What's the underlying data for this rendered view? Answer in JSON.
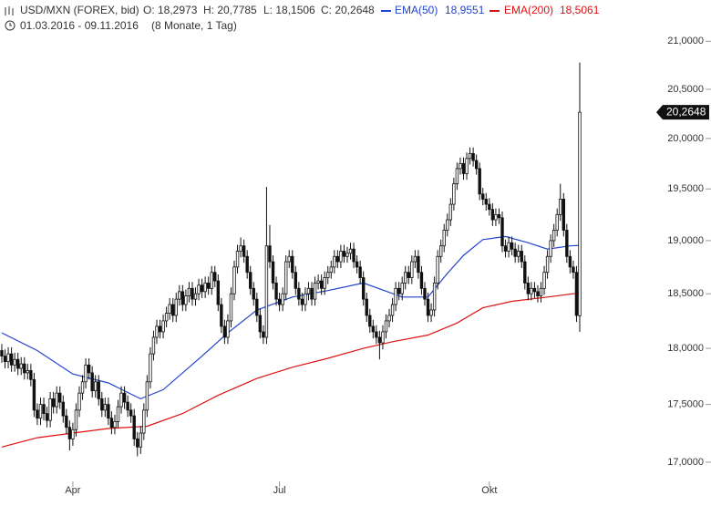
{
  "chart_data": {
    "type": "candlestick",
    "header": {
      "title": "USD/MXN (FOREX, bid)",
      "ohlc": [
        "O: 18,2973",
        "H: 20,7785",
        "L: 18,1506",
        "C: 20,2648"
      ],
      "range": "01.03.2016 - 09.11.2016",
      "span": "(8 Monate, 1 Tag)"
    },
    "log_scale": true,
    "ylim": [
      16.86,
      21.44
    ],
    "yticks": [
      {
        "value": 17,
        "label": "17,0000"
      },
      {
        "value": 17.5,
        "label": "17,5000"
      },
      {
        "value": 18,
        "label": "18,0000"
      },
      {
        "value": 18.5,
        "label": "18,5000"
      },
      {
        "value": 19,
        "label": "19,0000"
      },
      {
        "value": 19.5,
        "label": "19,5000"
      },
      {
        "value": 20,
        "label": "20,0000"
      },
      {
        "value": 20.5,
        "label": "20,5000"
      },
      {
        "value": 21,
        "label": "21,0000"
      }
    ],
    "xlim": [
      -0.56,
      182.95
    ],
    "xticks": [
      {
        "value": 22,
        "label": "Apr"
      },
      {
        "value": 86,
        "label": "Jul"
      },
      {
        "value": 151,
        "label": "Okt"
      }
    ],
    "last_price_label": "20,2648",
    "candles": {
      "open": [
        17.98,
        17.93,
        17.88,
        17.95,
        17.85,
        17.9,
        17.82,
        17.86,
        17.78,
        17.8,
        17.72,
        17.45,
        17.38,
        17.5,
        17.42,
        17.36,
        17.55,
        17.48,
        17.6,
        17.52,
        17.4,
        17.3,
        17.2,
        17.28,
        17.45,
        17.6,
        17.7,
        17.85,
        17.78,
        17.62,
        17.7,
        17.55,
        17.45,
        17.5,
        17.38,
        17.3,
        17.35,
        17.48,
        17.6,
        17.52,
        17.45,
        17.4,
        17.2,
        17.13,
        17.25,
        17.45,
        17.7,
        17.95,
        18.1,
        18.2,
        18.15,
        18.25,
        18.32,
        18.4,
        18.3,
        18.45,
        18.52,
        18.4,
        18.48,
        18.55,
        18.45,
        18.5,
        18.58,
        18.52,
        18.6,
        18.55,
        18.7,
        18.62,
        18.4,
        18.2,
        18.1,
        18.25,
        18.5,
        18.75,
        18.9,
        18.95,
        18.85,
        18.7,
        18.55,
        18.45,
        18.3,
        18.15,
        18.1,
        18.95,
        18.8,
        18.6,
        18.45,
        18.4,
        18.5,
        18.8,
        18.85,
        18.7,
        18.55,
        18.45,
        18.4,
        18.5,
        18.55,
        18.45,
        18.6,
        18.62,
        18.55,
        18.65,
        18.7,
        18.75,
        18.85,
        18.8,
        18.9,
        18.85,
        18.88,
        18.92,
        18.8,
        18.75,
        18.65,
        18.45,
        18.3,
        18.2,
        18.15,
        18.1,
        18.05,
        18.15,
        18.25,
        18.3,
        18.4,
        18.55,
        18.5,
        18.6,
        18.7,
        18.65,
        18.8,
        18.85,
        18.7,
        18.55,
        18.45,
        18.3,
        18.35,
        18.6,
        18.85,
        18.95,
        19.1,
        19.2,
        19.35,
        19.55,
        19.7,
        19.75,
        19.65,
        19.8,
        19.85,
        19.78,
        19.7,
        19.45,
        19.4,
        19.35,
        19.3,
        19.2,
        19.25,
        19.22,
        18.95,
        18.9,
        18.98,
        18.92,
        18.85,
        18.9,
        18.8,
        18.6,
        18.5,
        18.55,
        18.52,
        18.48,
        18.55,
        18.7,
        18.85,
        19.0,
        19.1,
        19.25,
        19.4,
        19.1,
        18.85,
        18.75,
        18.7,
        18.2973
      ],
      "high": [
        18.04,
        17.99,
        18.01,
        18.01,
        17.96,
        17.96,
        17.92,
        17.92,
        17.86,
        17.86,
        17.78,
        17.51,
        17.56,
        17.56,
        17.48,
        17.61,
        17.61,
        17.66,
        17.66,
        17.58,
        17.46,
        17.36,
        17.34,
        17.51,
        17.66,
        17.76,
        17.91,
        17.91,
        17.84,
        17.76,
        17.76,
        17.61,
        17.56,
        17.56,
        17.44,
        17.41,
        17.54,
        17.66,
        17.66,
        17.58,
        17.51,
        17.46,
        17.26,
        17.31,
        17.51,
        17.76,
        18.01,
        18.16,
        18.26,
        18.26,
        18.31,
        18.38,
        18.46,
        18.46,
        18.51,
        18.58,
        18.58,
        18.54,
        18.61,
        18.61,
        18.56,
        18.64,
        18.64,
        18.66,
        18.66,
        18.76,
        18.76,
        18.68,
        18.46,
        18.26,
        18.31,
        18.56,
        18.81,
        18.96,
        19.03,
        19.01,
        18.91,
        18.76,
        18.61,
        18.51,
        18.36,
        18.21,
        19.52,
        19.15,
        18.86,
        18.66,
        18.51,
        18.56,
        18.86,
        18.91,
        18.91,
        18.76,
        18.61,
        18.51,
        18.56,
        18.61,
        18.61,
        18.66,
        18.68,
        18.68,
        18.71,
        18.76,
        18.81,
        18.91,
        18.91,
        18.96,
        18.96,
        18.94,
        18.98,
        18.98,
        18.86,
        18.81,
        18.71,
        18.51,
        18.36,
        18.26,
        18.21,
        18.16,
        18.21,
        18.31,
        18.36,
        18.46,
        18.61,
        18.61,
        18.66,
        18.76,
        18.76,
        18.86,
        18.91,
        18.91,
        18.76,
        18.61,
        18.51,
        18.41,
        18.66,
        18.91,
        19.01,
        19.16,
        19.26,
        19.41,
        19.61,
        19.76,
        19.81,
        19.81,
        19.86,
        19.91,
        19.91,
        19.84,
        19.76,
        19.51,
        19.46,
        19.41,
        19.36,
        19.31,
        19.31,
        19.28,
        19.01,
        19.04,
        19.04,
        18.98,
        18.96,
        18.96,
        18.86,
        18.66,
        18.61,
        18.61,
        18.58,
        18.61,
        18.76,
        18.91,
        19.06,
        19.16,
        19.31,
        19.55,
        19.46,
        19.16,
        18.91,
        18.81,
        18.76,
        20.7785
      ],
      "low": [
        17.87,
        17.82,
        17.82,
        17.79,
        17.79,
        17.76,
        17.76,
        17.72,
        17.72,
        17.66,
        17.39,
        17.32,
        17.32,
        17.36,
        17.3,
        17.3,
        17.42,
        17.42,
        17.46,
        17.34,
        17.24,
        17.1,
        17.14,
        17.22,
        17.39,
        17.54,
        17.64,
        17.72,
        17.56,
        17.56,
        17.49,
        17.39,
        17.39,
        17.32,
        17.24,
        17.24,
        17.29,
        17.42,
        17.46,
        17.39,
        17.34,
        17.14,
        17.05,
        17.07,
        17.19,
        17.39,
        17.64,
        17.89,
        18.04,
        18.09,
        18.09,
        18.19,
        18.26,
        18.24,
        18.24,
        18.39,
        18.34,
        18.34,
        18.42,
        18.39,
        18.39,
        18.44,
        18.46,
        18.46,
        18.49,
        18.49,
        18.56,
        18.34,
        18.14,
        18.04,
        18.04,
        18.19,
        18.44,
        18.69,
        18.84,
        18.79,
        18.64,
        18.49,
        18.39,
        18.24,
        18.09,
        18.04,
        18.04,
        18.74,
        18.54,
        18.39,
        18.34,
        18.34,
        18.44,
        18.74,
        18.64,
        18.49,
        18.39,
        18.34,
        18.34,
        18.44,
        18.39,
        18.39,
        18.54,
        18.49,
        18.49,
        18.59,
        18.64,
        18.69,
        18.74,
        18.74,
        18.79,
        18.79,
        18.82,
        18.74,
        18.69,
        18.59,
        18.39,
        18.24,
        18.14,
        18.09,
        18.04,
        17.9,
        17.99,
        18.09,
        18.19,
        18.24,
        18.34,
        18.44,
        18.44,
        18.54,
        18.59,
        18.59,
        18.74,
        18.64,
        18.49,
        18.39,
        18.24,
        18.24,
        18.29,
        18.54,
        18.79,
        18.89,
        19.04,
        19.14,
        19.29,
        19.49,
        19.64,
        19.59,
        19.59,
        19.74,
        19.72,
        19.64,
        19.39,
        19.34,
        19.29,
        19.24,
        19.14,
        19.14,
        19.16,
        18.89,
        18.84,
        18.84,
        18.86,
        18.79,
        18.79,
        18.74,
        18.54,
        18.44,
        18.44,
        18.46,
        18.42,
        18.42,
        18.49,
        18.64,
        18.79,
        18.94,
        19.04,
        19.19,
        19.04,
        18.79,
        18.69,
        18.64,
        18.24,
        18.1506
      ],
      "close": [
        17.93,
        17.88,
        17.95,
        17.85,
        17.9,
        17.82,
        17.86,
        17.78,
        17.8,
        17.72,
        17.45,
        17.38,
        17.5,
        17.42,
        17.36,
        17.55,
        17.48,
        17.6,
        17.52,
        17.4,
        17.3,
        17.2,
        17.28,
        17.45,
        17.6,
        17.7,
        17.85,
        17.78,
        17.62,
        17.7,
        17.55,
        17.45,
        17.5,
        17.38,
        17.3,
        17.35,
        17.48,
        17.6,
        17.52,
        17.45,
        17.4,
        17.2,
        17.13,
        17.25,
        17.45,
        17.7,
        17.95,
        18.1,
        18.2,
        18.15,
        18.25,
        18.32,
        18.4,
        18.3,
        18.45,
        18.52,
        18.4,
        18.48,
        18.55,
        18.45,
        18.5,
        18.58,
        18.52,
        18.6,
        18.55,
        18.7,
        18.62,
        18.4,
        18.2,
        18.1,
        18.25,
        18.5,
        18.75,
        18.9,
        18.95,
        18.85,
        18.7,
        18.55,
        18.45,
        18.3,
        18.15,
        18.1,
        18.95,
        18.8,
        18.6,
        18.45,
        18.4,
        18.5,
        18.8,
        18.85,
        18.7,
        18.55,
        18.45,
        18.4,
        18.5,
        18.55,
        18.45,
        18.6,
        18.62,
        18.55,
        18.65,
        18.7,
        18.75,
        18.85,
        18.8,
        18.9,
        18.85,
        18.88,
        18.92,
        18.8,
        18.75,
        18.65,
        18.45,
        18.3,
        18.2,
        18.15,
        18.1,
        18.05,
        18.15,
        18.25,
        18.3,
        18.4,
        18.55,
        18.5,
        18.6,
        18.7,
        18.65,
        18.8,
        18.85,
        18.7,
        18.55,
        18.45,
        18.3,
        18.35,
        18.6,
        18.85,
        18.95,
        19.1,
        19.2,
        19.35,
        19.55,
        19.7,
        19.75,
        19.65,
        19.8,
        19.85,
        19.78,
        19.7,
        19.45,
        19.4,
        19.35,
        19.3,
        19.2,
        19.25,
        19.22,
        18.95,
        18.9,
        18.98,
        18.92,
        18.85,
        18.9,
        18.8,
        18.6,
        18.5,
        18.55,
        18.52,
        18.48,
        18.55,
        18.7,
        18.85,
        19.0,
        19.1,
        19.25,
        19.4,
        19.1,
        18.85,
        18.75,
        18.7,
        18.3,
        20.2648
      ]
    },
    "series": [
      {
        "name": "EMA(50)",
        "legend_value": "18,9551",
        "color": "#2244cc",
        "x": [
          0,
          11,
          22,
          33,
          43,
          50,
          62,
          70,
          79,
          90,
          101,
          112,
          124,
          132,
          138,
          143,
          149,
          156,
          163,
          169,
          176,
          179
        ],
        "values": [
          18.14,
          17.98,
          17.77,
          17.69,
          17.55,
          17.63,
          17.93,
          18.14,
          18.35,
          18.47,
          18.53,
          18.6,
          18.47,
          18.47,
          18.69,
          18.86,
          19.01,
          19.04,
          18.98,
          18.92,
          18.95,
          18.9551
        ]
      },
      {
        "name": "EMA(200)",
        "legend_value": "18,5061",
        "color": "#dd1111",
        "x": [
          0,
          11,
          22,
          33,
          45,
          56,
          67,
          79,
          90,
          101,
          112,
          121,
          132,
          141,
          149,
          158,
          169,
          177,
          179
        ],
        "values": [
          17.13,
          17.21,
          17.25,
          17.29,
          17.31,
          17.42,
          17.58,
          17.73,
          17.83,
          17.91,
          18.0,
          18.06,
          18.12,
          18.23,
          18.37,
          18.43,
          18.47,
          18.5,
          18.5061
        ]
      }
    ]
  }
}
